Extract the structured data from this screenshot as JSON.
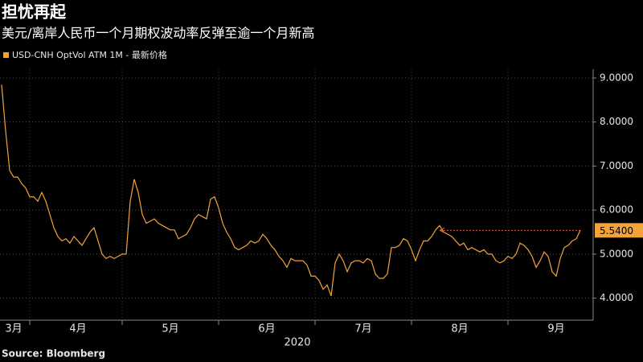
{
  "chart_data": {
    "type": "line",
    "title": "担忧再起",
    "subtitle": "美元/离岸人民币一个月期权波动率反弹至逾一个月新高",
    "source": "Source: Bloomberg",
    "x_label": "2020",
    "categories": [
      null,
      null,
      null,
      "3月",
      null,
      null,
      null,
      null,
      null,
      null,
      null,
      null,
      null,
      null,
      null,
      null,
      null,
      null,
      null,
      "4月",
      null,
      null,
      null,
      null,
      null,
      null,
      null,
      null,
      null,
      null,
      null,
      null,
      null,
      null,
      null,
      null,
      null,
      null,
      null,
      null,
      null,
      null,
      "5月",
      null,
      null,
      null,
      null,
      null,
      null,
      null,
      null,
      null,
      null,
      null,
      null,
      null,
      null,
      null,
      null,
      null,
      null,
      null,
      null,
      null,
      null,
      null,
      "6月",
      null,
      null,
      null,
      null,
      null,
      null,
      null,
      null,
      null,
      null,
      null,
      null,
      null,
      null,
      null,
      null,
      null,
      null,
      null,
      null,
      null,
      null,
      null,
      "7月",
      null,
      null,
      null,
      null,
      null,
      null,
      null,
      null,
      null,
      null,
      null,
      null,
      null,
      null,
      null,
      null,
      null,
      null,
      null,
      null,
      null,
      null,
      null,
      "8月",
      null,
      null,
      null,
      null,
      null,
      null,
      null,
      null,
      null,
      null,
      null,
      null,
      null,
      null,
      null,
      null,
      null,
      null,
      null,
      null,
      null,
      null,
      null,
      "9月",
      null,
      null,
      null,
      null,
      null,
      null
    ],
    "series": [
      {
        "name": "USD-CNH OptVol ATM 1M - 最新价格",
        "color": "#f2a33a",
        "values": [
          8.85,
          7.8,
          6.9,
          6.75,
          6.75,
          6.6,
          6.5,
          6.3,
          6.3,
          6.2,
          6.4,
          6.2,
          5.9,
          5.6,
          5.4,
          5.3,
          5.35,
          5.25,
          5.4,
          5.3,
          5.2,
          5.35,
          5.5,
          5.6,
          5.3,
          5.0,
          4.9,
          4.95,
          4.9,
          4.95,
          5.0,
          5.0,
          6.2,
          6.7,
          6.4,
          5.9,
          5.7,
          5.75,
          5.8,
          5.7,
          5.65,
          5.6,
          5.55,
          5.55,
          5.35,
          5.4,
          5.45,
          5.6,
          5.8,
          5.9,
          5.85,
          5.8,
          6.25,
          6.3,
          6.05,
          5.7,
          5.5,
          5.35,
          5.15,
          5.1,
          5.15,
          5.2,
          5.3,
          5.25,
          5.3,
          5.45,
          5.35,
          5.2,
          5.1,
          4.95,
          4.85,
          4.7,
          4.9,
          4.85,
          4.85,
          4.85,
          4.75,
          4.5,
          4.5,
          4.4,
          4.2,
          4.3,
          4.05,
          4.8,
          5.0,
          4.85,
          4.6,
          4.8,
          4.85,
          4.85,
          4.8,
          4.9,
          4.85,
          4.55,
          4.45,
          4.45,
          4.55,
          5.15,
          5.15,
          5.2,
          5.35,
          5.3,
          5.1,
          4.85,
          5.1,
          5.3,
          5.3,
          5.4,
          5.55,
          5.65,
          5.5,
          5.45,
          5.4,
          5.3,
          5.2,
          5.25,
          5.1,
          5.15,
          5.1,
          5.05,
          5.1,
          5.0,
          5.0,
          4.85,
          4.8,
          4.85,
          4.95,
          4.9,
          5.0,
          5.25,
          5.2,
          5.1,
          4.95,
          4.7,
          4.85,
          5.05,
          4.95,
          4.6,
          4.5,
          4.9,
          5.15,
          5.2,
          5.3,
          5.35,
          5.54
        ],
        "value_labels": [
          null,
          null,
          null,
          null,
          null,
          null,
          null,
          null,
          null,
          null,
          null,
          null,
          null,
          null,
          null,
          null,
          null,
          null,
          null,
          null,
          null,
          null,
          null,
          null,
          null,
          null,
          null,
          null,
          null,
          null,
          null,
          null,
          null,
          null,
          null,
          null,
          null,
          null,
          null,
          null,
          null,
          null,
          null,
          null,
          null,
          null,
          null,
          null,
          null,
          null,
          null,
          null,
          null,
          null,
          null,
          null,
          null,
          null,
          null,
          null,
          null,
          null,
          null,
          null,
          null,
          null,
          null,
          null,
          null,
          null,
          null,
          null,
          null,
          null,
          null,
          null,
          null,
          null,
          null,
          null,
          null,
          null,
          null,
          null,
          null,
          null,
          null,
          null,
          null,
          null,
          null,
          null,
          null,
          null,
          null,
          null,
          null,
          null,
          null,
          null,
          null,
          null,
          null,
          null,
          null,
          null,
          null,
          null,
          null,
          null,
          null,
          null,
          null,
          null,
          null,
          null,
          null,
          null,
          null,
          null,
          null,
          null,
          null,
          null,
          null,
          null,
          null,
          null,
          null,
          null,
          null,
          null,
          null,
          null,
          null,
          null,
          null,
          null,
          null,
          null,
          null,
          null,
          null,
          null,
          "5.5400"
        ]
      }
    ],
    "ylim": [
      3.5,
      9.2
    ],
    "yticks": [
      {
        "value": 4,
        "label": "4.0000"
      },
      {
        "value": 5,
        "label": "5.0000"
      },
      {
        "value": 6,
        "label": "6.0000"
      },
      {
        "value": 7,
        "label": "7.0000"
      },
      {
        "value": 8,
        "label": "8.0000"
      },
      {
        "value": 9,
        "label": "9.0000"
      }
    ],
    "grid": true
  }
}
